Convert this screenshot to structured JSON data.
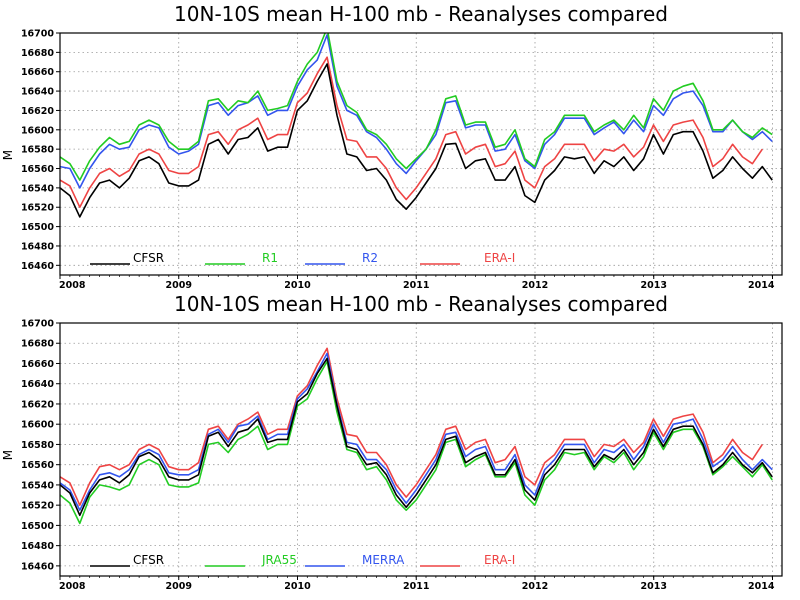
{
  "chart_data": [
    {
      "type": "line",
      "title": "10N-10S mean H-100 mb - Reanalyses compared",
      "ylabel": "M",
      "xlabel": "",
      "xlim": [
        2008.0,
        2014.08
      ],
      "ylim": [
        16450,
        16700
      ],
      "x_ticks": [
        "2008",
        "2009",
        "2010",
        "2011",
        "2012",
        "2013",
        "2014"
      ],
      "y_ticks": [
        "16460",
        "16480",
        "16500",
        "16520",
        "16540",
        "16560",
        "16580",
        "16600",
        "16620",
        "16640",
        "16660",
        "16680",
        "16700"
      ],
      "x_start": 2008.0,
      "x_step": 0.0833,
      "legend_placement": "bottom-inside",
      "grid": true,
      "series": [
        {
          "name": "CFSR",
          "color": "#000000",
          "values": [
            16540,
            16532,
            16510,
            16530,
            16545,
            16548,
            16540,
            16550,
            16568,
            16572,
            16565,
            16545,
            16542,
            16542,
            16548,
            16585,
            16590,
            16575,
            16590,
            16592,
            16602,
            16578,
            16582,
            16582,
            16620,
            16630,
            16650,
            16668,
            16615,
            16575,
            16572,
            16558,
            16560,
            16548,
            16528,
            16518,
            16530,
            16545,
            16560,
            16585,
            16586,
            16560,
            16568,
            16570,
            16548,
            16548,
            16562,
            16532,
            16525,
            16548,
            16558,
            16572,
            16570,
            16572,
            16555,
            16568,
            16562,
            16572,
            16558,
            16570,
            16595,
            16575,
            16595,
            16598,
            16598,
            16578,
            16550,
            16558,
            16572,
            16560,
            16550,
            16562,
            16548
          ]
        },
        {
          "name": "R1",
          "color": "#22cc22",
          "values": [
            16572,
            16565,
            16548,
            16568,
            16582,
            16592,
            16585,
            16588,
            16605,
            16610,
            16605,
            16588,
            16580,
            16580,
            16588,
            16630,
            16632,
            16620,
            16630,
            16628,
            16640,
            16620,
            16622,
            16625,
            16650,
            16668,
            16680,
            16705,
            16650,
            16625,
            16618,
            16600,
            16595,
            16585,
            16570,
            16560,
            16570,
            16580,
            16600,
            16632,
            16635,
            16605,
            16608,
            16608,
            16582,
            16585,
            16600,
            16570,
            16562,
            16590,
            16598,
            16615,
            16615,
            16615,
            16598,
            16605,
            16610,
            16600,
            16615,
            16602,
            16632,
            16620,
            16640,
            16645,
            16648,
            16630,
            16600,
            16600,
            16610,
            16598,
            16592,
            16602,
            16595
          ]
        },
        {
          "name": "R2",
          "color": "#3355ee",
          "values": [
            16562,
            16560,
            16540,
            16560,
            16575,
            16585,
            16580,
            16582,
            16600,
            16605,
            16602,
            16582,
            16575,
            16578,
            16585,
            16625,
            16628,
            16615,
            16625,
            16628,
            16635,
            16615,
            16620,
            16620,
            16645,
            16662,
            16672,
            16698,
            16645,
            16620,
            16615,
            16598,
            16592,
            16580,
            16565,
            16555,
            16568,
            16580,
            16595,
            16628,
            16630,
            16602,
            16605,
            16605,
            16578,
            16580,
            16595,
            16568,
            16560,
            16585,
            16595,
            16612,
            16612,
            16612,
            16595,
            16602,
            16608,
            16596,
            16610,
            16598,
            16625,
            16615,
            16632,
            16638,
            16640,
            16625,
            16598,
            16598,
            16610,
            16598,
            16590,
            16598,
            16588
          ]
        },
        {
          "name": "ERA-I",
          "color": "#ee4444",
          "values": [
            16548,
            16542,
            16520,
            16540,
            16555,
            16560,
            16552,
            16558,
            16575,
            16580,
            16575,
            16558,
            16555,
            16555,
            16562,
            16595,
            16598,
            16585,
            16600,
            16605,
            16612,
            16590,
            16595,
            16595,
            16628,
            16638,
            16658,
            16675,
            16625,
            16590,
            16588,
            16572,
            16572,
            16560,
            16540,
            16528,
            16540,
            16555,
            16570,
            16595,
            16598,
            16575,
            16582,
            16585,
            16562,
            16565,
            16578,
            16548,
            16540,
            16562,
            16570,
            16585,
            16585,
            16585,
            16568,
            16580,
            16578,
            16585,
            16572,
            16582,
            16605,
            16588,
            16605,
            16608,
            16610,
            16592,
            16562,
            16570,
            16585,
            16572,
            16565,
            16580,
            null
          ]
        }
      ]
    },
    {
      "type": "line",
      "title": "10N-10S mean H-100 mb - Reanalyses compared",
      "ylabel": "M",
      "xlabel": "",
      "xlim": [
        2008.0,
        2014.08
      ],
      "ylim": [
        16450,
        16700
      ],
      "x_ticks": [
        "2008",
        "2009",
        "2010",
        "2011",
        "2012",
        "2013",
        "2014"
      ],
      "y_ticks": [
        "16460",
        "16480",
        "16500",
        "16520",
        "16540",
        "16560",
        "16580",
        "16600",
        "16620",
        "16640",
        "16660",
        "16680",
        "16700"
      ],
      "x_start": 2008.0,
      "x_step": 0.0833,
      "legend_placement": "bottom-inside",
      "grid": true,
      "series": [
        {
          "name": "CFSR",
          "color": "#000000",
          "values": [
            16540,
            16532,
            16510,
            16532,
            16545,
            16548,
            16542,
            16550,
            16568,
            16572,
            16565,
            16548,
            16545,
            16545,
            16550,
            16588,
            16592,
            16578,
            16592,
            16595,
            16605,
            16582,
            16585,
            16585,
            16622,
            16630,
            16650,
            16665,
            16618,
            16578,
            16575,
            16560,
            16562,
            16550,
            16530,
            16518,
            16530,
            16545,
            16560,
            16585,
            16588,
            16562,
            16568,
            16572,
            16550,
            16550,
            16565,
            16535,
            16525,
            16550,
            16560,
            16575,
            16575,
            16575,
            16558,
            16570,
            16565,
            16575,
            16560,
            16572,
            16595,
            16578,
            16595,
            16598,
            16598,
            16580,
            16552,
            16560,
            16572,
            16560,
            16552,
            16562,
            16548
          ]
        },
        {
          "name": "JRA55",
          "color": "#22cc22",
          "values": [
            16530,
            16522,
            16502,
            16528,
            16540,
            16538,
            16535,
            16540,
            16560,
            16565,
            16560,
            16540,
            16538,
            16538,
            16542,
            16580,
            16582,
            16572,
            16585,
            16590,
            16598,
            16575,
            16580,
            16580,
            16618,
            16625,
            16645,
            16662,
            16612,
            16575,
            16572,
            16555,
            16558,
            16545,
            16525,
            16515,
            16525,
            16540,
            16555,
            16582,
            16585,
            16558,
            16565,
            16570,
            16548,
            16548,
            16562,
            16530,
            16520,
            16545,
            16555,
            16572,
            16570,
            16572,
            16555,
            16568,
            16562,
            16572,
            16555,
            16568,
            16592,
            16575,
            16592,
            16595,
            16595,
            16578,
            16550,
            16558,
            16568,
            16558,
            16548,
            16560,
            16545
          ]
        },
        {
          "name": "MERRA",
          "color": "#3355ee",
          "values": [
            16542,
            16535,
            16515,
            16535,
            16550,
            16552,
            16548,
            16555,
            16570,
            16575,
            16570,
            16552,
            16550,
            16550,
            16555,
            16590,
            16595,
            16582,
            16598,
            16600,
            16608,
            16585,
            16590,
            16590,
            16625,
            16635,
            16652,
            16670,
            16620,
            16582,
            16580,
            16565,
            16565,
            16555,
            16535,
            16522,
            16535,
            16550,
            16565,
            16590,
            16592,
            16568,
            16575,
            16578,
            16555,
            16555,
            16570,
            16540,
            16530,
            16555,
            16565,
            16580,
            16580,
            16580,
            16562,
            16575,
            16572,
            16580,
            16565,
            16578,
            16600,
            16582,
            16600,
            16602,
            16605,
            16585,
            16558,
            16565,
            16578,
            16565,
            16555,
            16565,
            16555
          ]
        },
        {
          "name": "ERA-I",
          "color": "#ee4444",
          "values": [
            16548,
            16542,
            16520,
            16542,
            16558,
            16560,
            16555,
            16560,
            16575,
            16580,
            16575,
            16558,
            16555,
            16555,
            16562,
            16595,
            16598,
            16585,
            16600,
            16605,
            16612,
            16590,
            16595,
            16595,
            16628,
            16638,
            16658,
            16675,
            16625,
            16590,
            16588,
            16572,
            16572,
            16560,
            16540,
            16528,
            16540,
            16555,
            16570,
            16595,
            16598,
            16575,
            16582,
            16585,
            16562,
            16565,
            16578,
            16548,
            16540,
            16562,
            16570,
            16585,
            16585,
            16585,
            16568,
            16580,
            16578,
            16585,
            16572,
            16582,
            16605,
            16588,
            16605,
            16608,
            16610,
            16592,
            16562,
            16570,
            16585,
            16572,
            16565,
            16580,
            null
          ]
        }
      ]
    }
  ]
}
